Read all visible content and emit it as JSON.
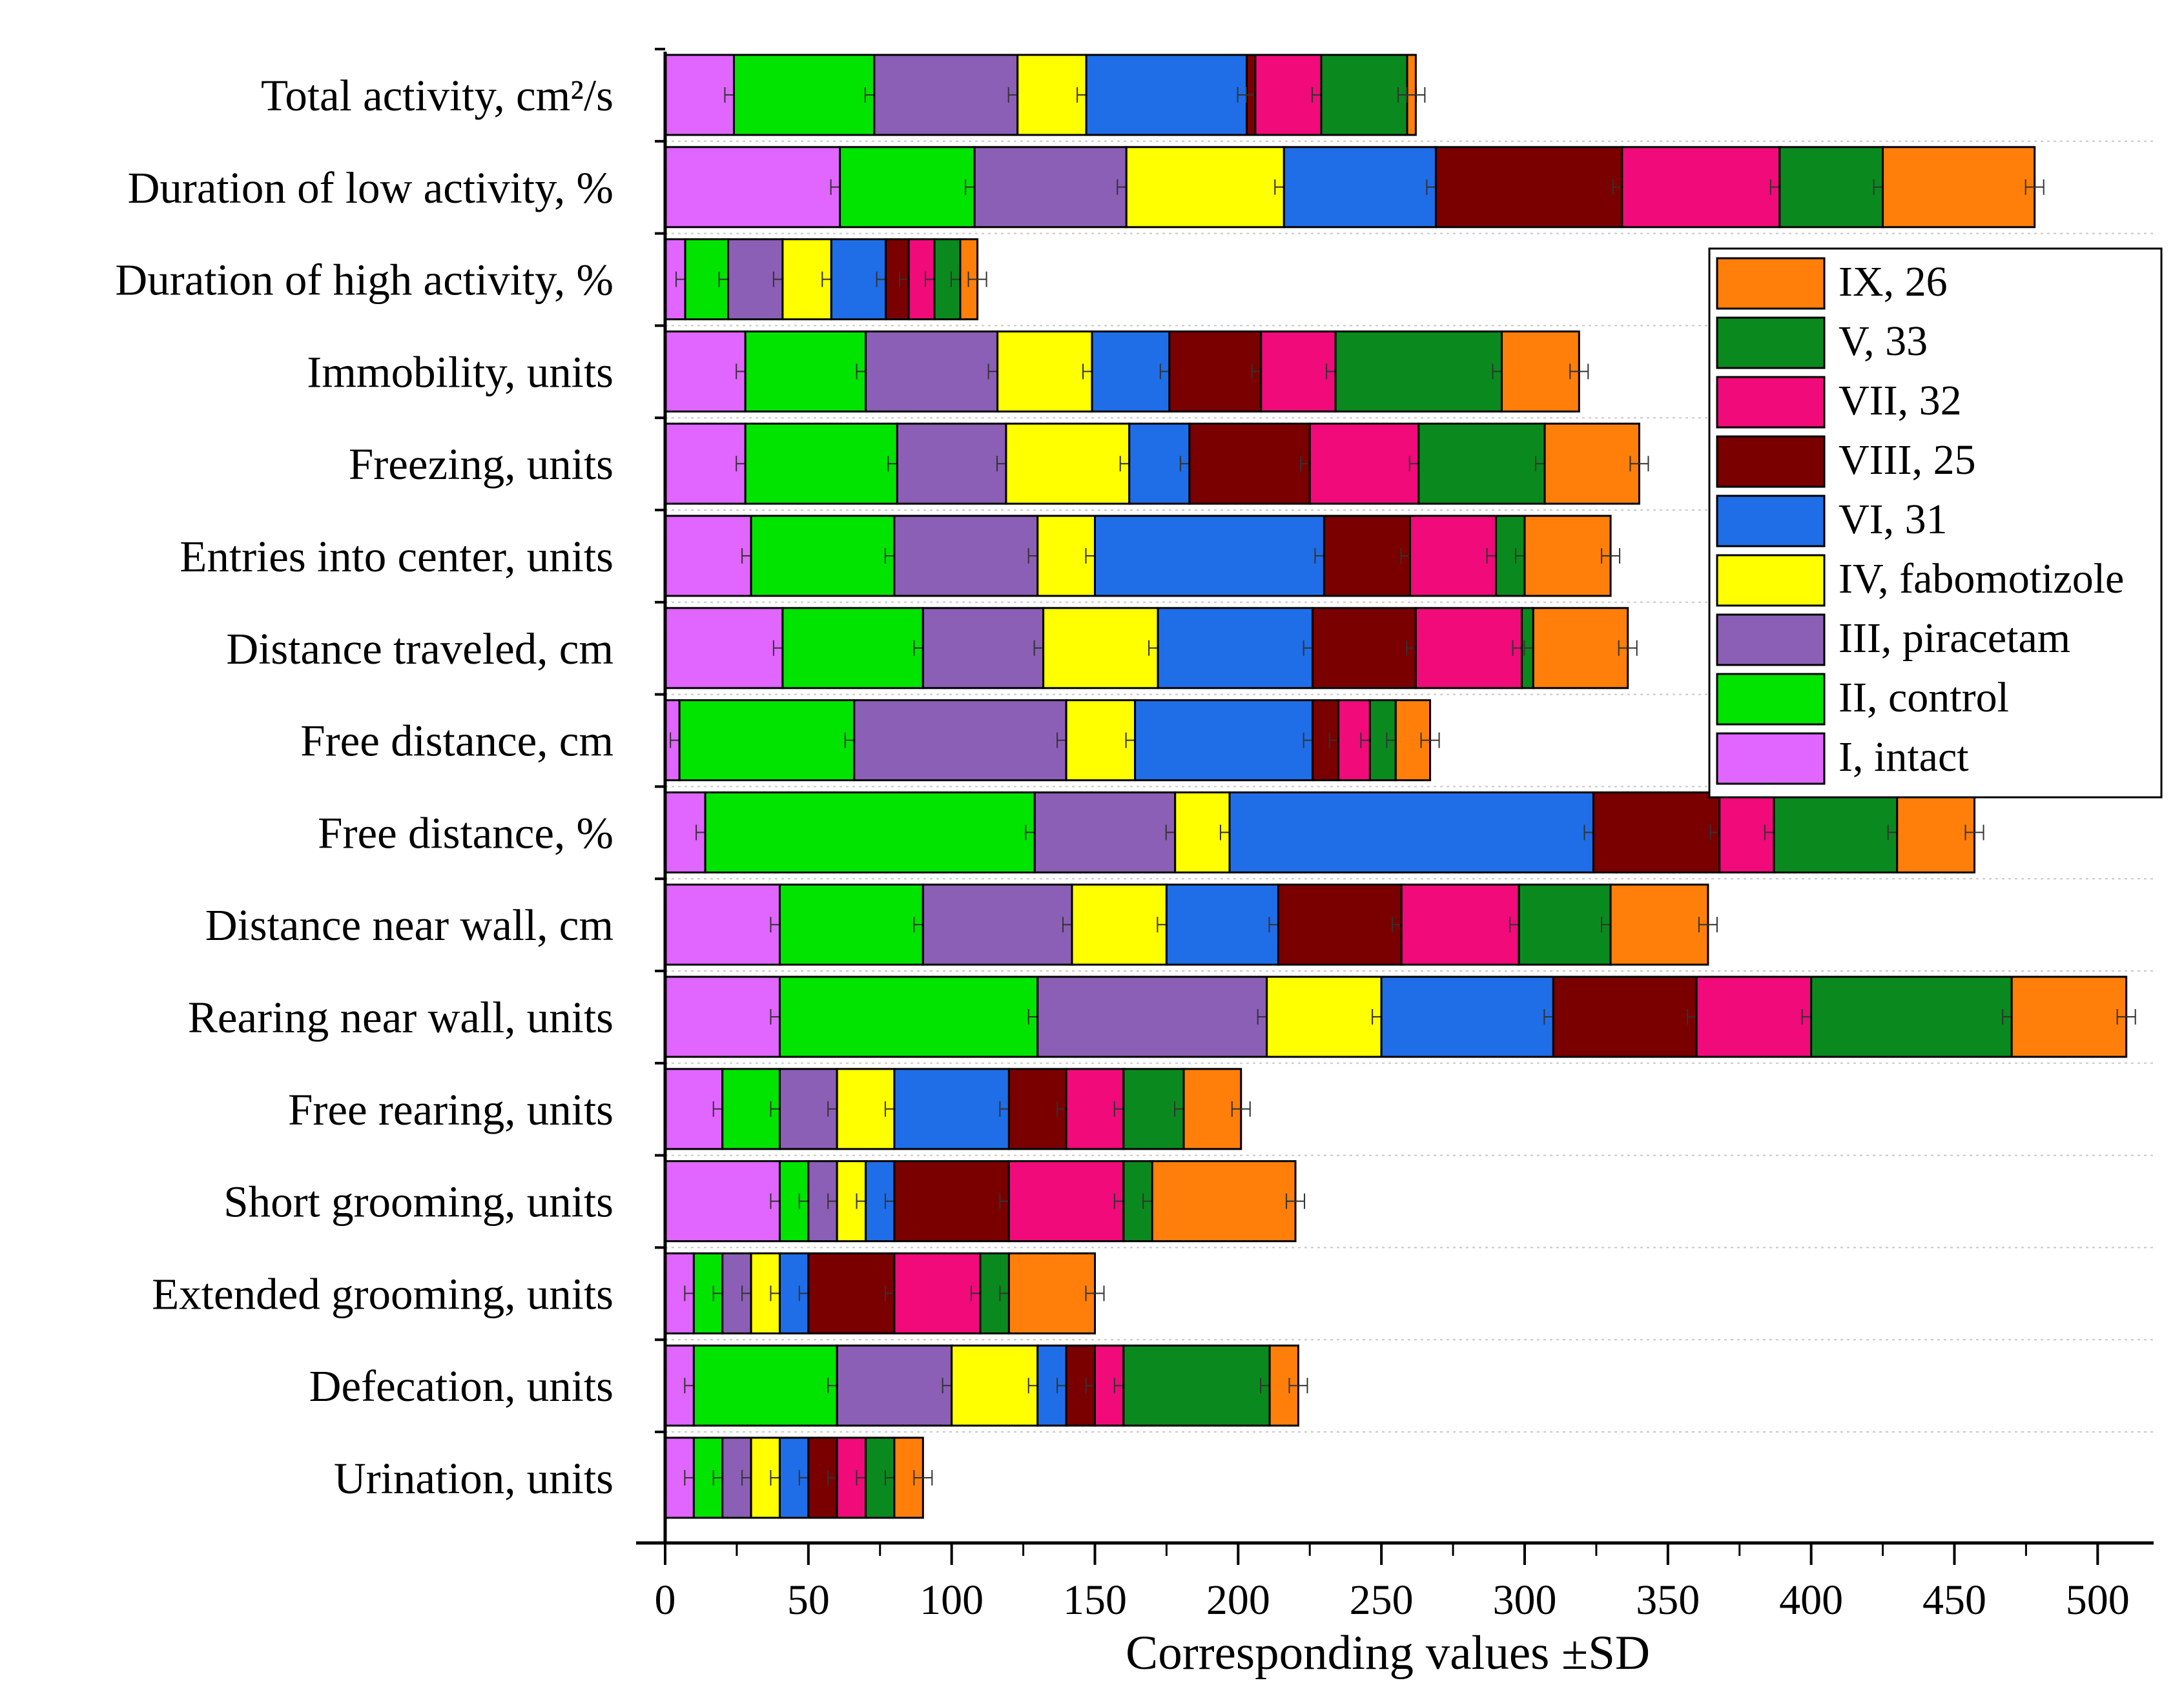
{
  "chart_data": {
    "type": "bar",
    "orientation": "horizontal",
    "stacked": true,
    "title": "",
    "xlabel": "Corresponding values ±SD",
    "ylabel": "",
    "xlim": [
      0,
      520
    ],
    "xticks": [
      "0",
      "50",
      "100",
      "150",
      "200",
      "250",
      "300",
      "350",
      "400",
      "450",
      "500"
    ],
    "grid": "dotted horizontal lines between categories",
    "legend_position": "right, upper",
    "categories": [
      "Total activity, cm²/s",
      "Duration of low activity, %",
      "Duration of high activity, %",
      "Immobility, units",
      "Freezing, units",
      "Entries into center, units",
      "Distance traveled, cm",
      "Free distance, cm",
      "Free distance, %",
      "Distance near wall, cm",
      "Rearing near wall, units",
      "Free rearing, units",
      "Short grooming, units",
      "Extended grooming, units",
      "Defecation, units",
      "Urination, units"
    ],
    "series": [
      {
        "name": "I, intact",
        "color": "#E066FF",
        "values": [
          24,
          61,
          7,
          28,
          28,
          30,
          41,
          5,
          14,
          40,
          40,
          20,
          40,
          10,
          10,
          10
        ]
      },
      {
        "name": "II, control",
        "color": "#00E400",
        "values": [
          49,
          47,
          15,
          42,
          53,
          50,
          49,
          61,
          115,
          50,
          90,
          20,
          10,
          10,
          50,
          10
        ]
      },
      {
        "name": "III, piracetam",
        "color": "#8B5FB5",
        "values": [
          50,
          53,
          19,
          46,
          38,
          50,
          42,
          74,
          49,
          52,
          80,
          20,
          10,
          10,
          40,
          10
        ]
      },
      {
        "name": "IV, fabomotizole",
        "color": "#FFFF00",
        "values": [
          24,
          55,
          17,
          33,
          43,
          20,
          40,
          24,
          19,
          33,
          40,
          20,
          10,
          10,
          30,
          10
        ]
      },
      {
        "name": "VI, 31",
        "color": "#1F6EE8",
        "values": [
          56,
          53,
          19,
          27,
          21,
          80,
          54,
          62,
          127,
          39,
          60,
          40,
          10,
          10,
          10,
          10
        ]
      },
      {
        "name": "VIII, 25",
        "color": "#7A0000",
        "values": [
          3,
          65,
          8,
          32,
          42,
          30,
          36,
          9,
          44,
          43,
          50,
          20,
          40,
          30,
          10,
          10
        ]
      },
      {
        "name": "VII, 32",
        "color": "#F00A7A",
        "values": [
          23,
          55,
          9,
          26,
          38,
          30,
          37,
          11,
          19,
          41,
          40,
          20,
          40,
          30,
          10,
          10
        ]
      },
      {
        "name": "V, 33",
        "color": "#0A8A1E",
        "values": [
          30,
          36,
          9,
          58,
          44,
          10,
          4,
          9,
          43,
          32,
          70,
          21,
          10,
          10,
          51,
          10
        ]
      },
      {
        "name": "IX, 26",
        "color": "#FF7F0A",
        "values": [
          3,
          53,
          6,
          27,
          33,
          30,
          33,
          12,
          27,
          34,
          40,
          20,
          50,
          30,
          10,
          10
        ]
      }
    ],
    "legend_order": [
      "IX, 26",
      "V, 33",
      "VII, 32",
      "VIII, 25",
      "VI, 31",
      "IV, fabomotizole",
      "III, piracetam",
      "II, control",
      "I, intact"
    ]
  }
}
